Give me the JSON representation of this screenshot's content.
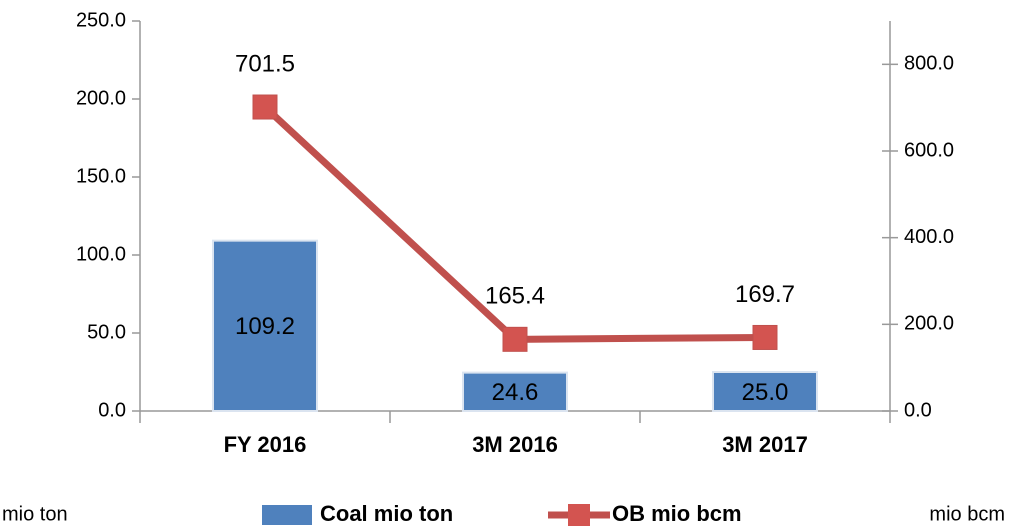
{
  "chart_data": {
    "type": "bar_line",
    "categories": [
      "FY 2016",
      "3M 2016",
      "3M 2017"
    ],
    "series": [
      {
        "name": "Coal mio ton",
        "type": "bar",
        "color": "#4f81bd",
        "values": [
          109.2,
          24.6,
          25
        ],
        "value_labels": [
          "109.2",
          "24.6",
          "25.0"
        ]
      },
      {
        "name": "OB mio bcm",
        "type": "line",
        "axis": "y2",
        "color": "#c0504d",
        "values": [
          701.5,
          165.4,
          169.7
        ],
        "value_labels": [
          "701.5",
          "165.4",
          "169.7"
        ]
      }
    ],
    "ylim": [
      0,
      250
    ],
    "yticks": [
      {
        "value": 0,
        "label": "0.0"
      },
      {
        "value": 50,
        "label": "50.0"
      },
      {
        "value": 100,
        "label": "100.0"
      },
      {
        "value": 150,
        "label": "150.0"
      },
      {
        "value": 200,
        "label": "200.0"
      },
      {
        "value": 250,
        "label": "250.0"
      }
    ],
    "y2lim": [
      0,
      900
    ],
    "y2ticks": [
      {
        "value": 0,
        "label": "0.0"
      },
      {
        "value": 200,
        "label": "200.0"
      },
      {
        "value": 400,
        "label": "400.0"
      },
      {
        "value": 600,
        "label": "600.0"
      },
      {
        "value": 800,
        "label": "800.0"
      }
    ],
    "ylabel": "mio ton",
    "y2label": "mio bcm",
    "legend": "bottom"
  }
}
